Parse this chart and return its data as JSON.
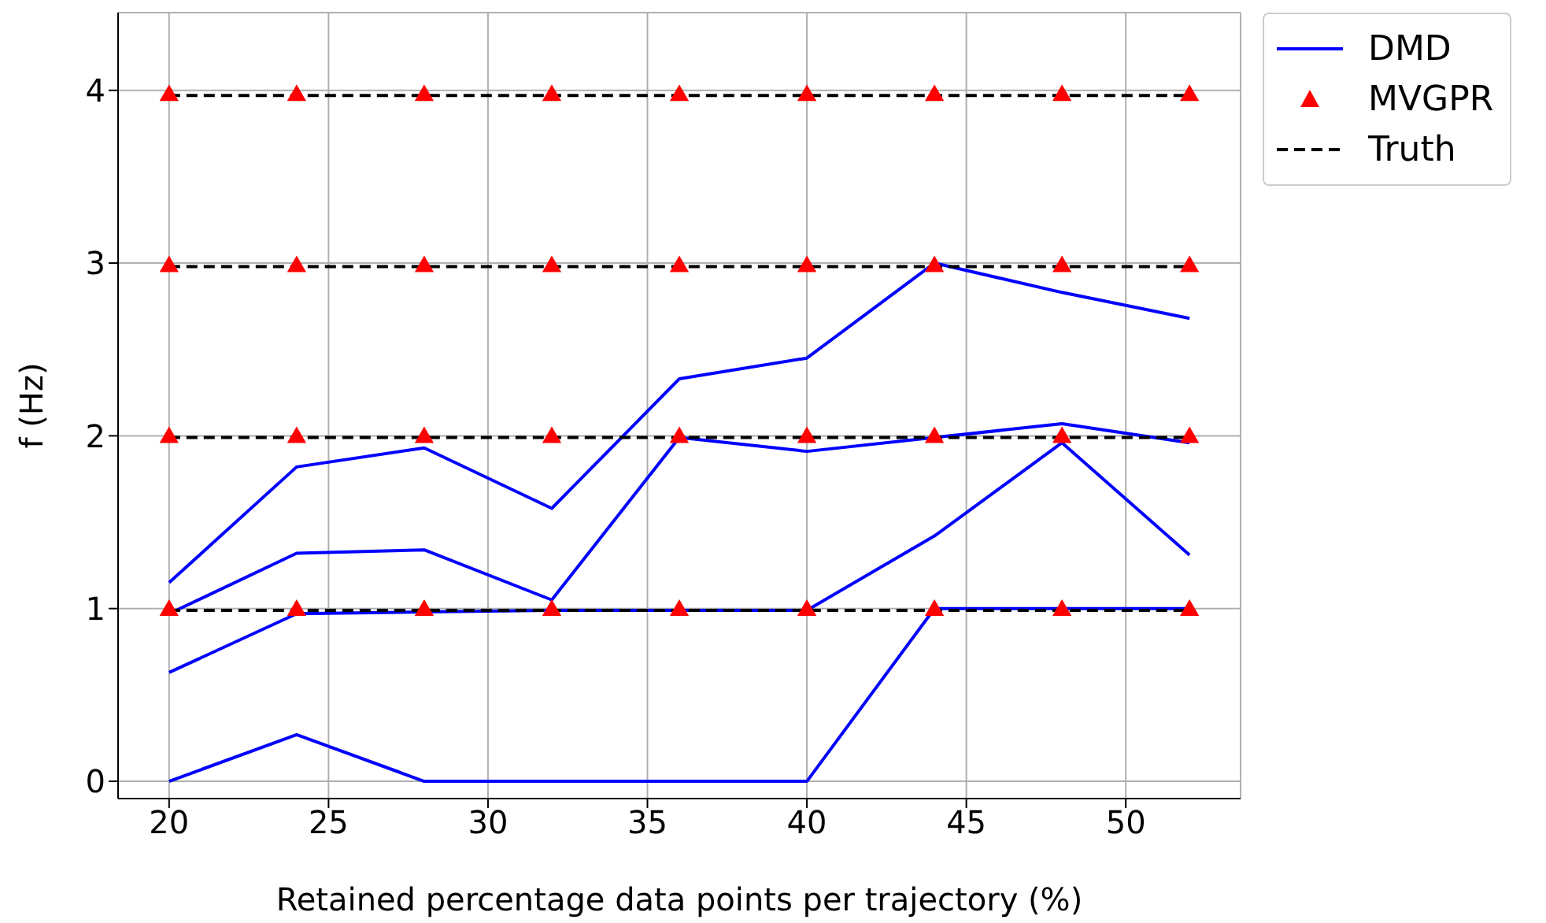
{
  "chart_data": {
    "type": "line",
    "xlabel": "Retained percentage data points per trajectory (%)",
    "ylabel": "f (Hz)",
    "x": [
      20,
      24,
      28,
      32,
      36,
      40,
      44,
      48,
      52
    ],
    "series": [
      {
        "name": "DMD",
        "color": "#0000ff",
        "marker": "none",
        "line_style": "solid",
        "values": [
          1.15,
          1.82,
          1.93,
          1.58,
          2.33,
          2.45,
          3.0,
          2.83,
          2.68
        ]
      },
      {
        "color": "#0000ff",
        "marker": "none",
        "line_style": "solid",
        "values": [
          0.97,
          1.32,
          1.34,
          1.05,
          1.99,
          1.91,
          1.99,
          2.07,
          1.96
        ]
      },
      {
        "color": "#0000ff",
        "marker": "none",
        "line_style": "solid",
        "values": [
          0.63,
          0.97,
          0.98,
          0.99,
          0.99,
          0.99,
          1.42,
          1.96,
          1.31
        ]
      },
      {
        "color": "#0000ff",
        "marker": "none",
        "line_style": "solid",
        "values": [
          0,
          0.27,
          0,
          0,
          0,
          0,
          1.0,
          1.0,
          1.0
        ]
      },
      {
        "name": "MVGPR",
        "type": "scatter",
        "color": "#ff0000",
        "marker": "triangle",
        "x": [
          20,
          24,
          28,
          32,
          36,
          40,
          44,
          48,
          52,
          20,
          24,
          28,
          32,
          36,
          40,
          44,
          48,
          52,
          20,
          24,
          28,
          32,
          36,
          40,
          44,
          48,
          52,
          20,
          24,
          28,
          32,
          36,
          40,
          44,
          48,
          52
        ],
        "values": [
          3.97,
          3.97,
          3.97,
          3.97,
          3.97,
          3.97,
          3.97,
          3.97,
          3.97,
          2.98,
          2.98,
          2.98,
          2.98,
          2.98,
          2.98,
          2.98,
          2.98,
          2.98,
          1.99,
          1.99,
          1.99,
          1.99,
          1.99,
          1.99,
          1.99,
          1.99,
          1.99,
          0.99,
          0.99,
          0.99,
          0.99,
          0.99,
          0.99,
          0.99,
          0.99,
          0.99
        ]
      },
      {
        "name": "Truth",
        "color": "#000000",
        "marker": "none",
        "line_style": "dashed",
        "x": [
          20,
          52
        ],
        "values": [
          3.97,
          3.97
        ]
      },
      {
        "color": "#000000",
        "marker": "none",
        "line_style": "dashed",
        "x": [
          20,
          52
        ],
        "values": [
          2.98,
          2.98
        ]
      },
      {
        "color": "#000000",
        "marker": "none",
        "line_style": "dashed",
        "x": [
          20,
          52
        ],
        "values": [
          1.99,
          1.99
        ]
      },
      {
        "color": "#000000",
        "marker": "none",
        "line_style": "dashed",
        "x": [
          20,
          52
        ],
        "values": [
          0.99,
          0.99
        ]
      }
    ],
    "xlim": [
      18.4,
      53.6
    ],
    "xticks": [
      20,
      25,
      30,
      35,
      40,
      45,
      50
    ],
    "ylim": [
      -0.1,
      4.45
    ],
    "yticks": [
      0,
      1,
      2,
      3,
      4
    ],
    "grid": true,
    "legend": "top right"
  }
}
